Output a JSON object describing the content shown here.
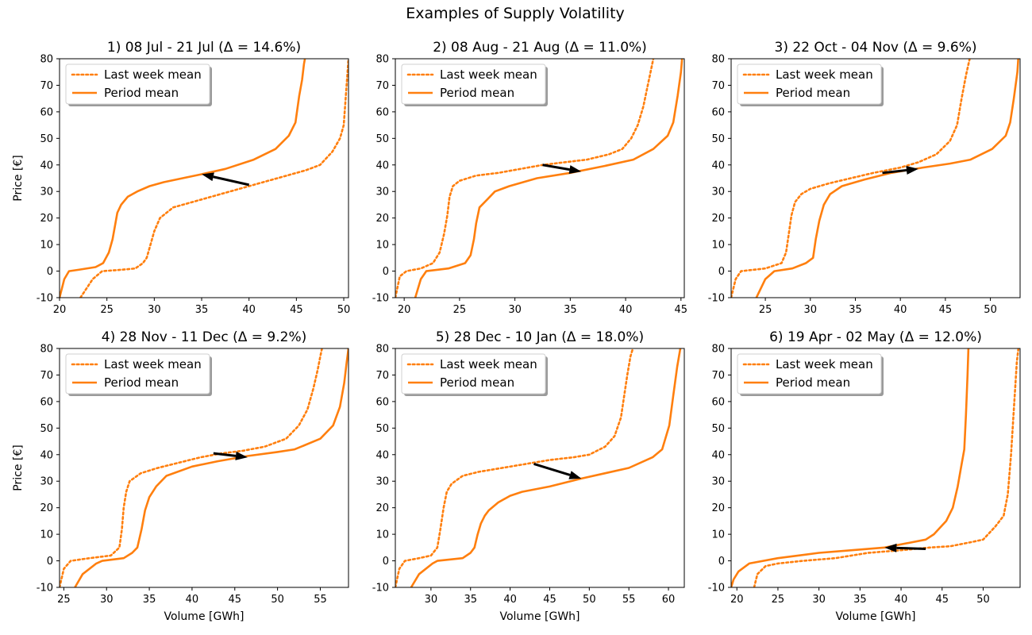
{
  "figure_title": "Examples of Supply Volatility",
  "colors": {
    "series": "#ff7f0e",
    "arrow": "#000000",
    "axes": "#000000"
  },
  "chart_data": [
    {
      "type": "line",
      "title": "1)  08  Jul - 21  Jul (Δ = 14.6%)",
      "xlabel": "",
      "ylabel": "Price [€]",
      "xlim": [
        20,
        50.5
      ],
      "ylim": [
        -10,
        80
      ],
      "xticks": [
        20,
        25,
        30,
        35,
        40,
        45,
        50
      ],
      "yticks": [
        -10,
        0,
        10,
        20,
        30,
        40,
        50,
        60,
        70,
        80
      ],
      "legend": "upper-left",
      "series": [
        {
          "name": "Last week mean",
          "style": "dotted",
          "x": [
            22.2,
            23.5,
            24.5,
            26.5,
            28,
            28.8,
            29.2,
            29.6,
            30,
            30.6,
            32,
            34,
            36,
            38,
            40,
            42,
            44,
            46,
            47.5,
            48.8,
            49.6,
            50,
            50.3,
            50.5
          ],
          "y": [
            -10,
            -3,
            0,
            0.5,
            1,
            3,
            5,
            10,
            15,
            20,
            24,
            26,
            28,
            30,
            32,
            34,
            36,
            38,
            40,
            45,
            50,
            55,
            70,
            80
          ]
        },
        {
          "name": "Period mean",
          "style": "solid",
          "x": [
            20,
            20.5,
            21,
            22,
            23.8,
            24.6,
            25.2,
            25.6,
            25.9,
            26.1,
            26.5,
            27.2,
            28.2,
            29.5,
            31,
            33,
            35,
            37.5,
            40.5,
            42.8,
            44.2,
            44.9,
            45.3,
            45.6,
            45.8,
            45.9
          ],
          "y": [
            -10,
            -3,
            0,
            0.5,
            1.5,
            3,
            7,
            12,
            18,
            22,
            25,
            28,
            30,
            32,
            33.5,
            35,
            36.5,
            38.5,
            42,
            46,
            51,
            56,
            66,
            72,
            78,
            80
          ]
        }
      ],
      "arrow": {
        "from": [
          40,
          32.5
        ],
        "to": [
          35,
          36.5
        ]
      }
    },
    {
      "type": "line",
      "title": "2)  08  Aug - 21  Aug (Δ = 11.0%)",
      "xlabel": "",
      "ylabel": "",
      "xlim": [
        19.2,
        45.3
      ],
      "ylim": [
        -10,
        80
      ],
      "xticks": [
        20,
        25,
        30,
        35,
        40,
        45
      ],
      "yticks": [
        -10,
        0,
        10,
        20,
        30,
        40,
        50,
        60,
        70,
        80
      ],
      "legend": "upper-left",
      "series": [
        {
          "name": "Last week mean",
          "style": "dotted",
          "x": [
            19.2,
            19.6,
            20.2,
            21.5,
            22.6,
            23.2,
            23.6,
            23.9,
            24.1,
            24.4,
            25,
            26.5,
            28.5,
            30.5,
            32.5,
            34.5,
            36.5,
            38.5,
            39.7,
            40.5,
            41.1,
            41.6,
            42,
            42.3,
            42.5
          ],
          "y": [
            -10,
            -2,
            0,
            1,
            3,
            7,
            14,
            21,
            28,
            32,
            34,
            36,
            37,
            38.5,
            40,
            41,
            42,
            44,
            46,
            50,
            55,
            62,
            70,
            76,
            80
          ]
        },
        {
          "name": "Period mean",
          "style": "solid",
          "x": [
            21,
            21.5,
            22,
            24,
            25.5,
            26,
            26.3,
            26.5,
            26.8,
            27.5,
            28.2,
            29.5,
            32,
            35,
            38,
            40.7,
            42.5,
            43.8,
            44.3,
            44.7,
            45,
            45.1
          ],
          "y": [
            -10,
            -3,
            0,
            1,
            3,
            6,
            12,
            18,
            24,
            27,
            30,
            32,
            35,
            37,
            39.5,
            42,
            46,
            51,
            56,
            66,
            75,
            80
          ]
        }
      ],
      "arrow": {
        "from": [
          32.5,
          40
        ],
        "to": [
          36,
          37.5
        ]
      }
    },
    {
      "type": "line",
      "title": "3)  22  Oct - 04  Nov (Δ = 9.6%)",
      "xlabel": "",
      "ylabel": "",
      "xlim": [
        21.2,
        53.3
      ],
      "ylim": [
        -10,
        80
      ],
      "xticks": [
        25,
        30,
        35,
        40,
        45,
        50
      ],
      "yticks": [
        -10,
        0,
        10,
        20,
        30,
        40,
        50,
        60,
        70,
        80
      ],
      "legend": "upper-left",
      "series": [
        {
          "name": "Last week mean",
          "style": "dotted",
          "x": [
            21.2,
            21.7,
            22.3,
            25,
            26.8,
            27.3,
            27.6,
            27.9,
            28.3,
            29,
            30,
            32,
            34.5,
            37,
            40,
            42,
            44,
            45.5,
            46.3,
            46.8,
            47.3,
            47.7
          ],
          "y": [
            -10,
            -3,
            0,
            1,
            3,
            7,
            14,
            21,
            26,
            29,
            31,
            33,
            35,
            37,
            39,
            41,
            44,
            49,
            55,
            65,
            74,
            80
          ]
        },
        {
          "name": "Period mean",
          "style": "solid",
          "x": [
            24,
            25,
            26,
            28,
            29.5,
            30.3,
            30.6,
            31,
            31.5,
            32.2,
            33.5,
            36,
            39,
            42.5,
            45.5,
            47.8,
            50.2,
            51.7,
            52.2,
            52.6,
            53,
            53.1
          ],
          "y": [
            -10,
            -3,
            0,
            1,
            3,
            5,
            12,
            19,
            25,
            29,
            32,
            34.5,
            37,
            39,
            40.5,
            42,
            46,
            51,
            56,
            65,
            75,
            80
          ]
        }
      ],
      "arrow": {
        "from": [
          38,
          37
        ],
        "to": [
          42,
          38.5
        ]
      }
    },
    {
      "type": "line",
      "title": "4)  28  Nov - 11  Dec (Δ = 9.2%)",
      "xlabel": "Volume [GWh]",
      "ylabel": "Price [€]",
      "xlim": [
        24.5,
        58.3
      ],
      "ylim": [
        -10,
        80
      ],
      "xticks": [
        25,
        30,
        35,
        40,
        45,
        50,
        55
      ],
      "yticks": [
        -10,
        0,
        10,
        20,
        30,
        40,
        50,
        60,
        70,
        80
      ],
      "legend": "upper-left",
      "series": [
        {
          "name": "Last week mean",
          "style": "dotted",
          "x": [
            24.5,
            25,
            25.8,
            28,
            30.5,
            31.5,
            31.8,
            32,
            32.3,
            32.7,
            34,
            36,
            38.5,
            41,
            43.5,
            46,
            48.5,
            51,
            52.5,
            53.5,
            54.2,
            54.7,
            55,
            55.2
          ],
          "y": [
            -10,
            -3,
            0,
            1,
            2,
            5,
            12,
            20,
            26,
            30,
            33,
            35,
            37,
            39,
            40.5,
            41.5,
            43,
            46,
            51,
            57,
            65,
            72,
            77,
            80
          ]
        },
        {
          "name": "Period mean",
          "style": "solid",
          "x": [
            26.3,
            27.2,
            28.8,
            29.5,
            32,
            33,
            33.6,
            34.1,
            34.5,
            35,
            35.8,
            37,
            40,
            43,
            46.5,
            50,
            52,
            55,
            56.5,
            57.3,
            57.8,
            58.1,
            58.3
          ],
          "y": [
            -10,
            -5,
            -1,
            0,
            1,
            3,
            5,
            12,
            19,
            24,
            28,
            32,
            35.5,
            37.5,
            39.5,
            41,
            42,
            46,
            51,
            58,
            67,
            75,
            80
          ]
        }
      ],
      "arrow": {
        "from": [
          42.5,
          40.5
        ],
        "to": [
          46.5,
          39
        ]
      }
    },
    {
      "type": "line",
      "title": "5)  28  Dec - 10  Jan (Δ = 18.0%)",
      "xlabel": "Volume [GWh]",
      "ylabel": "",
      "xlim": [
        25.5,
        62
      ],
      "ylim": [
        -10,
        80
      ],
      "xticks": [
        30,
        35,
        40,
        45,
        50,
        55,
        60
      ],
      "yticks": [
        -10,
        0,
        10,
        20,
        30,
        40,
        50,
        60,
        70,
        80
      ],
      "legend": "upper-left",
      "series": [
        {
          "name": "Last week mean",
          "style": "dotted",
          "x": [
            25.5,
            26,
            26.7,
            28.5,
            30,
            30.8,
            31.2,
            31.6,
            32,
            32.6,
            34,
            36,
            39,
            42,
            45,
            48,
            50,
            52,
            53.2,
            54,
            54.4,
            54.8,
            55.2,
            55.5
          ],
          "y": [
            -10,
            -3,
            0,
            1,
            2,
            5,
            12,
            20,
            26,
            29,
            32,
            33.5,
            35,
            36.5,
            38,
            39,
            40,
            43,
            47,
            54,
            62,
            70,
            77,
            80
          ]
        },
        {
          "name": "Period mean",
          "style": "solid",
          "x": [
            27.5,
            28.5,
            30.2,
            30.8,
            34,
            35,
            35.5,
            35.9,
            36.3,
            36.8,
            37.3,
            38.5,
            40,
            41.5,
            45,
            49,
            52,
            55,
            58,
            59.2,
            60.1,
            60.6,
            61.1,
            61.5
          ],
          "y": [
            -10,
            -5,
            -1,
            0,
            1,
            3,
            5,
            10,
            14,
            17,
            19,
            22,
            24.5,
            26,
            28,
            31,
            33,
            35,
            39,
            42,
            51,
            62,
            73,
            80
          ]
        }
      ],
      "arrow": {
        "from": [
          43,
          36.5
        ],
        "to": [
          49,
          31
        ]
      }
    },
    {
      "type": "line",
      "title": "6)  19  Apr - 02  May (Δ = 12.0%)",
      "xlabel": "Volume [GWh]",
      "ylabel": "",
      "xlim": [
        19.3,
        54.5
      ],
      "ylim": [
        -10,
        80
      ],
      "xticks": [
        20,
        25,
        30,
        35,
        40,
        45,
        50
      ],
      "yticks": [
        -10,
        0,
        10,
        20,
        30,
        40,
        50,
        60,
        70,
        80
      ],
      "legend": "upper-left",
      "series": [
        {
          "name": "Last week mean",
          "style": "dotted",
          "x": [
            22.1,
            22.5,
            23.5,
            25,
            28,
            32,
            36,
            40,
            43.5,
            46,
            48.5,
            50,
            51.5,
            52.5,
            53,
            53.4,
            53.7,
            53.9,
            54.1,
            54.3
          ],
          "y": [
            -10,
            -5,
            -2,
            -1,
            0,
            1,
            3,
            4,
            5,
            5.5,
            7,
            8,
            13,
            17,
            25,
            40,
            55,
            65,
            75,
            80
          ]
        },
        {
          "name": "Period mean",
          "style": "solid",
          "x": [
            19.3,
            19.6,
            20.2,
            21.5,
            25,
            30,
            34,
            38,
            43,
            44,
            45.5,
            46.3,
            46.9,
            47.3,
            47.7,
            47.9,
            48.1,
            48.2
          ],
          "y": [
            -10,
            -7,
            -4,
            -1,
            1,
            3,
            4,
            5,
            8,
            10,
            15,
            20,
            28,
            35,
            42,
            55,
            70,
            80
          ]
        }
      ],
      "arrow": {
        "from": [
          43,
          4.5
        ],
        "to": [
          38,
          5
        ]
      }
    }
  ]
}
